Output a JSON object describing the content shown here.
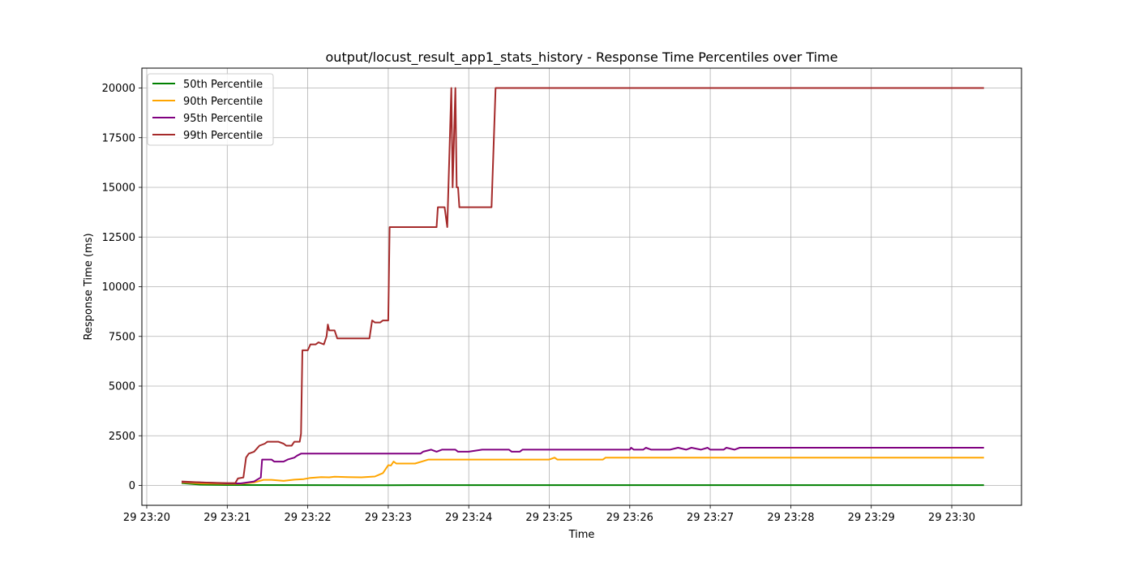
{
  "chart_data": {
    "type": "line",
    "title": "output/locust_result_app1_stats_history - Response Time Percentiles over Time",
    "xlabel": "Time",
    "ylabel": "Response Time (ms)",
    "x_axis": {
      "kind": "time",
      "range": [
        "23:20:00",
        "23:31:00"
      ],
      "ticks": [
        "23:20:00",
        "23:21:00",
        "23:22:00",
        "23:23:00",
        "23:24:00",
        "23:25:00",
        "23:26:00",
        "23:27:00",
        "23:28:00",
        "23:29:00",
        "23:30:00"
      ],
      "tick_labels": [
        "29 23:20",
        "29 23:21",
        "29 23:22",
        "29 23:23",
        "29 23:24",
        "29 23:25",
        "29 23:26",
        "29 23:27",
        "29 23:28",
        "29 23:29",
        "29 23:30"
      ]
    },
    "y_axis": {
      "range": [
        -1000,
        21000
      ],
      "ticks": [
        0,
        2500,
        5000,
        7500,
        10000,
        12500,
        15000,
        17500,
        20000
      ],
      "tick_labels": [
        "0",
        "2500",
        "5000",
        "7500",
        "10000",
        "12500",
        "15000",
        "17500",
        "20000"
      ]
    },
    "grid": true,
    "legend_position": "top-left",
    "series": [
      {
        "name": "50th Percentile",
        "color": "#008000",
        "points": [
          [
            "23:20:26",
            120
          ],
          [
            "23:20:40",
            40
          ],
          [
            "23:21:00",
            20
          ],
          [
            "23:22:00",
            15
          ],
          [
            "23:23:00",
            12
          ],
          [
            "23:24:00",
            15
          ],
          [
            "23:25:00",
            18
          ],
          [
            "23:26:00",
            18
          ],
          [
            "23:27:00",
            18
          ],
          [
            "23:28:00",
            18
          ],
          [
            "23:29:00",
            18
          ],
          [
            "23:30:00",
            18
          ],
          [
            "23:30:24",
            18
          ]
        ]
      },
      {
        "name": "90th Percentile",
        "color": "#ffa500",
        "points": [
          [
            "23:20:26",
            150
          ],
          [
            "23:20:40",
            100
          ],
          [
            "23:21:00",
            80
          ],
          [
            "23:21:10",
            80
          ],
          [
            "23:21:20",
            150
          ],
          [
            "23:21:27",
            280
          ],
          [
            "23:21:33",
            280
          ],
          [
            "23:21:42",
            230
          ],
          [
            "23:21:50",
            290
          ],
          [
            "23:21:57",
            320
          ],
          [
            "23:22:02",
            380
          ],
          [
            "23:22:10",
            420
          ],
          [
            "23:22:16",
            410
          ],
          [
            "23:22:20",
            440
          ],
          [
            "23:22:30",
            420
          ],
          [
            "23:22:40",
            410
          ],
          [
            "23:22:50",
            450
          ],
          [
            "23:22:56",
            620
          ],
          [
            "23:23:00",
            1020
          ],
          [
            "23:23:02",
            1000
          ],
          [
            "23:23:04",
            1200
          ],
          [
            "23:23:06",
            1100
          ],
          [
            "23:23:20",
            1100
          ],
          [
            "23:23:25",
            1200
          ],
          [
            "23:23:30",
            1300
          ],
          [
            "23:24:00",
            1300
          ],
          [
            "23:24:30",
            1300
          ],
          [
            "23:25:00",
            1300
          ],
          [
            "23:25:04",
            1400
          ],
          [
            "23:25:06",
            1300
          ],
          [
            "23:25:30",
            1300
          ],
          [
            "23:25:40",
            1300
          ],
          [
            "23:25:42",
            1400
          ],
          [
            "23:26:00",
            1400
          ],
          [
            "23:27:00",
            1400
          ],
          [
            "23:28:00",
            1400
          ],
          [
            "23:29:00",
            1400
          ],
          [
            "23:30:00",
            1400
          ],
          [
            "23:30:24",
            1400
          ]
        ]
      },
      {
        "name": "95th Percentile",
        "color": "#800080",
        "points": [
          [
            "23:20:26",
            180
          ],
          [
            "23:20:40",
            150
          ],
          [
            "23:21:00",
            100
          ],
          [
            "23:21:10",
            100
          ],
          [
            "23:21:20",
            200
          ],
          [
            "23:21:25",
            400
          ],
          [
            "23:21:26",
            1300
          ],
          [
            "23:21:33",
            1300
          ],
          [
            "23:21:35",
            1200
          ],
          [
            "23:21:42",
            1200
          ],
          [
            "23:21:45",
            1300
          ],
          [
            "23:21:50",
            1400
          ],
          [
            "23:21:52",
            1500
          ],
          [
            "23:21:55",
            1600
          ],
          [
            "23:22:00",
            1600
          ],
          [
            "23:22:30",
            1600
          ],
          [
            "23:23:00",
            1600
          ],
          [
            "23:23:24",
            1600
          ],
          [
            "23:23:26",
            1700
          ],
          [
            "23:23:32",
            1800
          ],
          [
            "23:23:36",
            1700
          ],
          [
            "23:23:40",
            1800
          ],
          [
            "23:23:50",
            1800
          ],
          [
            "23:23:52",
            1700
          ],
          [
            "23:24:00",
            1700
          ],
          [
            "23:24:10",
            1800
          ],
          [
            "23:24:30",
            1800
          ],
          [
            "23:24:32",
            1700
          ],
          [
            "23:24:38",
            1700
          ],
          [
            "23:24:40",
            1800
          ],
          [
            "23:25:00",
            1800
          ],
          [
            "23:25:30",
            1800
          ],
          [
            "23:26:00",
            1800
          ],
          [
            "23:26:01",
            1900
          ],
          [
            "23:26:03",
            1800
          ],
          [
            "23:26:10",
            1800
          ],
          [
            "23:26:12",
            1900
          ],
          [
            "23:26:16",
            1800
          ],
          [
            "23:26:30",
            1800
          ],
          [
            "23:26:36",
            1900
          ],
          [
            "23:26:42",
            1800
          ],
          [
            "23:26:46",
            1900
          ],
          [
            "23:26:53",
            1800
          ],
          [
            "23:26:58",
            1900
          ],
          [
            "23:27:00",
            1800
          ],
          [
            "23:27:10",
            1800
          ],
          [
            "23:27:12",
            1900
          ],
          [
            "23:27:18",
            1800
          ],
          [
            "23:27:22",
            1900
          ],
          [
            "23:28:00",
            1900
          ],
          [
            "23:29:00",
            1900
          ],
          [
            "23:30:00",
            1900
          ],
          [
            "23:30:24",
            1900
          ]
        ]
      },
      {
        "name": "99th Percentile",
        "color": "#a52a2a",
        "points": [
          [
            "23:20:26",
            200
          ],
          [
            "23:20:40",
            150
          ],
          [
            "23:21:00",
            120
          ],
          [
            "23:21:06",
            120
          ],
          [
            "23:21:08",
            350
          ],
          [
            "23:21:12",
            400
          ],
          [
            "23:21:14",
            1400
          ],
          [
            "23:21:16",
            1600
          ],
          [
            "23:21:20",
            1700
          ],
          [
            "23:21:24",
            2000
          ],
          [
            "23:21:28",
            2100
          ],
          [
            "23:21:30",
            2200
          ],
          [
            "23:21:38",
            2200
          ],
          [
            "23:21:42",
            2100
          ],
          [
            "23:21:44",
            2000
          ],
          [
            "23:21:48",
            2000
          ],
          [
            "23:21:50",
            2200
          ],
          [
            "23:21:54",
            2200
          ],
          [
            "23:21:55",
            2600
          ],
          [
            "23:21:56",
            6800
          ],
          [
            "23:21:58",
            6800
          ],
          [
            "23:22:00",
            6800
          ],
          [
            "23:22:02",
            7100
          ],
          [
            "23:22:06",
            7100
          ],
          [
            "23:22:08",
            7200
          ],
          [
            "23:22:12",
            7100
          ],
          [
            "23:22:14",
            7500
          ],
          [
            "23:22:15",
            8100
          ],
          [
            "23:22:16",
            7800
          ],
          [
            "23:22:20",
            7800
          ],
          [
            "23:22:22",
            7400
          ],
          [
            "23:22:30",
            7400
          ],
          [
            "23:22:46",
            7400
          ],
          [
            "23:22:48",
            8300
          ],
          [
            "23:22:50",
            8200
          ],
          [
            "23:22:54",
            8200
          ],
          [
            "23:22:56",
            8300
          ],
          [
            "23:23:00",
            8300
          ],
          [
            "23:23:01",
            13000
          ],
          [
            "23:23:20",
            13000
          ],
          [
            "23:23:36",
            13000
          ],
          [
            "23:23:37",
            14000
          ],
          [
            "23:23:42",
            14000
          ],
          [
            "23:23:44",
            13000
          ],
          [
            "23:23:47",
            20000
          ],
          [
            "23:23:48",
            15000
          ],
          [
            "23:23:50",
            20000
          ],
          [
            "23:23:51",
            15000
          ],
          [
            "23:23:52",
            15000
          ],
          [
            "23:23:53",
            14000
          ],
          [
            "23:24:00",
            14000
          ],
          [
            "23:24:17",
            14000
          ],
          [
            "23:24:20",
            20000
          ],
          [
            "23:25:00",
            20000
          ],
          [
            "23:26:00",
            20000
          ],
          [
            "23:27:00",
            20000
          ],
          [
            "23:28:00",
            20000
          ],
          [
            "23:29:00",
            20000
          ],
          [
            "23:30:00",
            20000
          ],
          [
            "23:30:24",
            20000
          ]
        ]
      }
    ]
  }
}
